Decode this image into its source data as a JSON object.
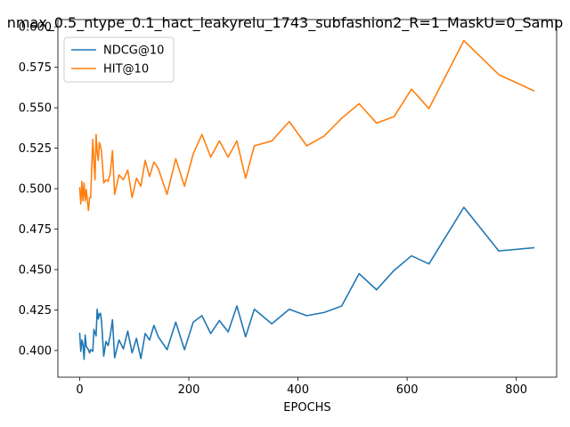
{
  "chart_data": {
    "type": "line",
    "title": "nmax_0.5_ntype_0.1_hact_leakyrelu_1743_subfashion2_R=1_MaskU=0_Samp",
    "xlabel": "EPOCHS",
    "ylabel": "",
    "xlim": [
      -40,
      874
    ],
    "ylim": [
      0.3835,
      0.6045
    ],
    "xticks": [
      0,
      200,
      400,
      600,
      800
    ],
    "xtick_labels": [
      "0",
      "200",
      "400",
      "600",
      "800"
    ],
    "yticks": [
      0.4,
      0.425,
      0.45,
      0.475,
      0.5,
      0.525,
      0.55,
      0.575,
      0.6
    ],
    "ytick_labels": [
      "0.400",
      "0.425",
      "0.450",
      "0.475",
      "0.500",
      "0.525",
      "0.550",
      "0.575",
      "0.600"
    ],
    "grid": false,
    "legend_position": "top-left",
    "series": [
      {
        "name": "NDCG@10",
        "color": "#1f77b4",
        "x": [
          0,
          2,
          4,
          6,
          8,
          10,
          12,
          14,
          16,
          18,
          20,
          24,
          26,
          28,
          30,
          32,
          34,
          36,
          38,
          40,
          44,
          48,
          52,
          56,
          60,
          64,
          72,
          80,
          88,
          96,
          104,
          112,
          120,
          128,
          136,
          144,
          160,
          176,
          192,
          208,
          224,
          240,
          256,
          272,
          288,
          304,
          320,
          352,
          384,
          416,
          448,
          480,
          512,
          544,
          576,
          608,
          640,
          704,
          768,
          832
        ],
        "y": [
          0.4105,
          0.3995,
          0.4065,
          0.4035,
          0.3945,
          0.4095,
          0.4025,
          0.4015,
          0.4005,
          0.3985,
          0.4005,
          0.3995,
          0.413,
          0.411,
          0.409,
          0.4255,
          0.4195,
          0.4225,
          0.423,
          0.418,
          0.3965,
          0.4055,
          0.403,
          0.4095,
          0.419,
          0.3955,
          0.4065,
          0.401,
          0.412,
          0.3985,
          0.4075,
          0.395,
          0.4105,
          0.4065,
          0.4155,
          0.4085,
          0.4005,
          0.4175,
          0.4005,
          0.4175,
          0.4215,
          0.4105,
          0.4185,
          0.4115,
          0.4275,
          0.4085,
          0.4255,
          0.4165,
          0.4255,
          0.4215,
          0.4235,
          0.4275,
          0.4475,
          0.4375,
          0.4495,
          0.4585,
          0.4535,
          0.4885,
          0.4615,
          0.4635
        ]
      },
      {
        "name": "HIT@10",
        "color": "#ff7f0e",
        "x": [
          0,
          2,
          4,
          6,
          8,
          10,
          12,
          14,
          16,
          18,
          20,
          24,
          26,
          28,
          30,
          32,
          34,
          36,
          38,
          40,
          44,
          48,
          52,
          56,
          60,
          64,
          72,
          80,
          88,
          96,
          104,
          112,
          120,
          128,
          136,
          144,
          160,
          176,
          192,
          208,
          224,
          240,
          256,
          272,
          288,
          304,
          320,
          352,
          384,
          416,
          448,
          480,
          512,
          544,
          576,
          608,
          640,
          704,
          768,
          832
        ],
        "y": [
          0.5005,
          0.4905,
          0.5045,
          0.4925,
          0.5035,
          0.4925,
          0.4995,
          0.4925,
          0.4865,
          0.4945,
          0.4945,
          0.5305,
          0.5165,
          0.5055,
          0.5335,
          0.5225,
          0.5175,
          0.5285,
          0.5265,
          0.5225,
          0.5035,
          0.5055,
          0.5045,
          0.5095,
          0.5235,
          0.4965,
          0.5085,
          0.5055,
          0.5115,
          0.4945,
          0.5065,
          0.5015,
          0.5175,
          0.5075,
          0.5165,
          0.5125,
          0.4965,
          0.5185,
          0.5015,
          0.5215,
          0.5335,
          0.5195,
          0.5295,
          0.5195,
          0.5295,
          0.5065,
          0.5265,
          0.5295,
          0.5415,
          0.5265,
          0.5325,
          0.5435,
          0.5525,
          0.5405,
          0.5445,
          0.5615,
          0.5495,
          0.5915,
          0.5705,
          0.5605
        ]
      }
    ]
  }
}
